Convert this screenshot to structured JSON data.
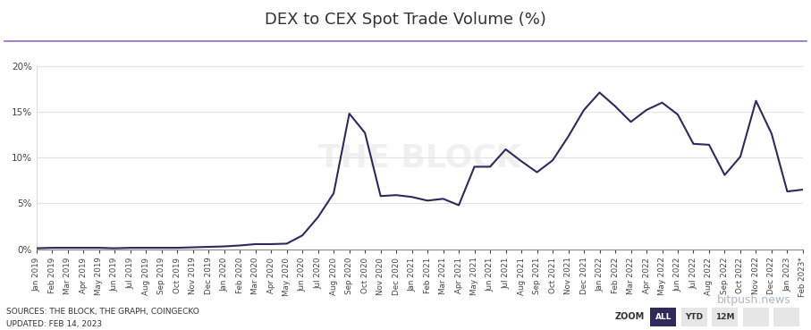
{
  "chart_data": {
    "type": "line",
    "title": "DEX to CEX Spot Trade Volume (%)",
    "categories": [
      "Jan 2019",
      "Feb 2019",
      "Mar 2019",
      "Apr 2019",
      "May 2019",
      "Jun 2019",
      "Jul 2019",
      "Aug 2019",
      "Sep 2019",
      "Oct 2019",
      "Nov 2019",
      "Dec 2019",
      "Jan 2020",
      "Feb 2020",
      "Mar 2020",
      "Apr 2020",
      "May 2020",
      "Jun 2020",
      "Jul 2020",
      "Aug 2020",
      "Sep 2020",
      "Oct 2020",
      "Nov 2020",
      "Dec 2020",
      "Jan 2021",
      "Feb 2021",
      "Mar 2021",
      "Apr 2021",
      "May 2021",
      "Jun 2021",
      "Jul 2021",
      "Aug 2021",
      "Sep 2021",
      "Oct 2021",
      "Nov 2021",
      "Dec 2021",
      "Jan 2022",
      "Feb 2022",
      "Mar 2022",
      "Apr 2022",
      "May 2022",
      "Jun 2022",
      "Jul 2022",
      "Aug 2022",
      "Sep 2022",
      "Oct 2022",
      "Nov 2022",
      "Dec 2022",
      "Jan 2023",
      "Feb 2023*"
    ],
    "values": [
      0.1,
      0.15,
      0.15,
      0.15,
      0.15,
      0.1,
      0.15,
      0.15,
      0.15,
      0.15,
      0.2,
      0.25,
      0.3,
      0.4,
      0.55,
      0.55,
      0.6,
      1.5,
      3.5,
      6.1,
      14.8,
      12.7,
      5.8,
      5.9,
      5.7,
      5.3,
      5.5,
      4.8,
      9.0,
      9.0,
      10.9,
      9.6,
      8.4,
      9.7,
      12.3,
      15.2,
      17.1,
      15.6,
      13.9,
      15.2,
      16.0,
      14.7,
      11.5,
      11.4,
      8.1,
      10.1,
      16.2,
      12.6,
      6.3,
      6.5
    ],
    "color": "#2e2a5c",
    "ylim": [
      0,
      20
    ],
    "yticks": [
      {
        "value": 0,
        "label": "0%"
      },
      {
        "value": 5,
        "label": "5%"
      },
      {
        "value": 10,
        "label": "10%"
      },
      {
        "value": 15,
        "label": "15%"
      },
      {
        "value": 20,
        "label": "20%"
      }
    ],
    "grid": true,
    "source": "SOURCES: THE BLOCK, THE GRAPH, COINGECKO",
    "updated": "UPDATED: FEB 14, 2023",
    "zoom": {
      "label": "ZOOM",
      "options": [
        "ALL",
        "YTD",
        "12M"
      ]
    },
    "watermarks": [
      "THE BLOCK",
      "bitpush.news"
    ]
  }
}
